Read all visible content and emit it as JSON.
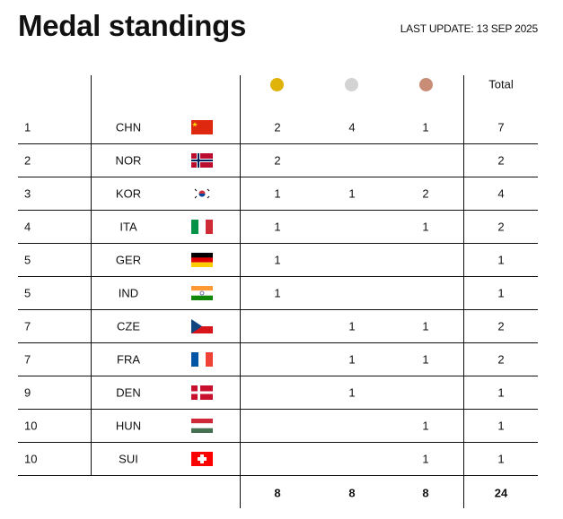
{
  "title": "Medal standings",
  "last_update": "LAST UPDATE: 13 SEP 2025",
  "header": {
    "total": "Total",
    "medals": [
      {
        "name": "gold",
        "color": "#e0b30b"
      },
      {
        "name": "silver",
        "color": "#d3d3d3"
      },
      {
        "name": "bronze",
        "color": "#c98c76"
      }
    ]
  },
  "rows": [
    {
      "rank": "1",
      "code": "CHN",
      "gold": "2",
      "silver": "4",
      "bronze": "1",
      "total": "7"
    },
    {
      "rank": "2",
      "code": "NOR",
      "gold": "2",
      "silver": "",
      "bronze": "",
      "total": "2"
    },
    {
      "rank": "3",
      "code": "KOR",
      "gold": "1",
      "silver": "1",
      "bronze": "2",
      "total": "4"
    },
    {
      "rank": "4",
      "code": "ITA",
      "gold": "1",
      "silver": "",
      "bronze": "1",
      "total": "2"
    },
    {
      "rank": "5",
      "code": "GER",
      "gold": "1",
      "silver": "",
      "bronze": "",
      "total": "1"
    },
    {
      "rank": "5",
      "code": "IND",
      "gold": "1",
      "silver": "",
      "bronze": "",
      "total": "1"
    },
    {
      "rank": "7",
      "code": "CZE",
      "gold": "",
      "silver": "1",
      "bronze": "1",
      "total": "2"
    },
    {
      "rank": "7",
      "code": "FRA",
      "gold": "",
      "silver": "1",
      "bronze": "1",
      "total": "2"
    },
    {
      "rank": "9",
      "code": "DEN",
      "gold": "",
      "silver": "1",
      "bronze": "",
      "total": "1"
    },
    {
      "rank": "10",
      "code": "HUN",
      "gold": "",
      "silver": "",
      "bronze": "1",
      "total": "1"
    },
    {
      "rank": "10",
      "code": "SUI",
      "gold": "",
      "silver": "",
      "bronze": "1",
      "total": "1"
    }
  ],
  "totals": {
    "gold": "8",
    "silver": "8",
    "bronze": "8",
    "total": "24"
  }
}
